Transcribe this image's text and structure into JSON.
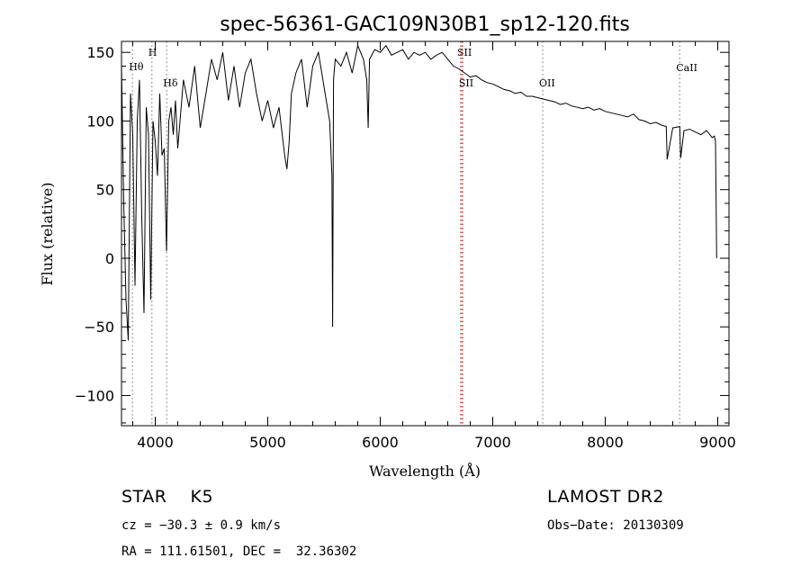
{
  "chart_data": {
    "type": "line",
    "title": "spec-56361-GAC109N30B1_sp12-120.fits",
    "xlabel": "Wavelength (Å)",
    "ylabel": "Flux (relative)",
    "xlim": [
      3700,
      9100
    ],
    "ylim": [
      -122,
      158
    ],
    "x_ticks": [
      4000,
      5000,
      6000,
      7000,
      8000,
      9000
    ],
    "y_ticks": [
      -100,
      -50,
      0,
      50,
      100,
      150
    ],
    "x_tick_labels": [
      "4000",
      "5000",
      "6000",
      "7000",
      "8000",
      "9000"
    ],
    "y_tick_labels": [
      "−100",
      "−50",
      "0",
      "50",
      "100",
      "150"
    ],
    "line_color": "#000000",
    "marker_color": "#cc0000",
    "series": [
      {
        "x": [
          3700,
          3720,
          3740,
          3760,
          3780,
          3800,
          3820,
          3840,
          3860,
          3880,
          3900,
          3920,
          3940,
          3960,
          3980,
          4000,
          4020,
          4040,
          4060,
          4080,
          4100,
          4120,
          4140,
          4160,
          4180,
          4200,
          4250,
          4300,
          4350,
          4400,
          4450,
          4500,
          4550,
          4600,
          4650,
          4700,
          4750,
          4800,
          4850,
          4900,
          4950,
          5000,
          5050,
          5100,
          5150,
          5170,
          5190,
          5210,
          5250,
          5300,
          5350,
          5400,
          5450,
          5500,
          5550,
          5570,
          5577,
          5585,
          5600,
          5650,
          5700,
          5750,
          5800,
          5850,
          5880,
          5893,
          5905,
          5950,
          6000,
          6050,
          6100,
          6150,
          6200,
          6250,
          6300,
          6350,
          6400,
          6450,
          6500,
          6550,
          6600,
          6650,
          6700,
          6750,
          6800,
          6850,
          6900,
          6950,
          7000,
          7050,
          7100,
          7150,
          7200,
          7250,
          7300,
          7350,
          7400,
          7450,
          7500,
          7550,
          7600,
          7650,
          7700,
          7750,
          7800,
          7850,
          7900,
          7950,
          8000,
          8050,
          8100,
          8150,
          8200,
          8250,
          8300,
          8350,
          8400,
          8450,
          8500,
          8542,
          8550,
          8600,
          8662,
          8670,
          8700,
          8750,
          8800,
          8850,
          8900,
          8950,
          8970,
          8980,
          8990
        ],
        "y": [
          140,
          40,
          -30,
          -60,
          120,
          90,
          -20,
          100,
          130,
          30,
          -40,
          110,
          90,
          -30,
          100,
          85,
          60,
          120,
          75,
          80,
          5,
          100,
          110,
          90,
          115,
          80,
          130,
          110,
          140,
          95,
          120,
          145,
          130,
          150,
          115,
          140,
          110,
          135,
          145,
          120,
          100,
          115,
          95,
          110,
          75,
          65,
          85,
          120,
          135,
          145,
          110,
          140,
          150,
          125,
          100,
          60,
          -50,
          130,
          145,
          140,
          150,
          135,
          155,
          145,
          130,
          95,
          145,
          152,
          150,
          155,
          148,
          150,
          152,
          145,
          150,
          148,
          150,
          145,
          148,
          150,
          145,
          140,
          138,
          135,
          132,
          133,
          130,
          128,
          127,
          125,
          123,
          122,
          120,
          121,
          118,
          118,
          117,
          116,
          115,
          114,
          112,
          113,
          111,
          110,
          109,
          110,
          108,
          109,
          107,
          106,
          105,
          104,
          103,
          105,
          101,
          100,
          98,
          99,
          97,
          96,
          72,
          95,
          96,
          73,
          93,
          94,
          92,
          90,
          93,
          88,
          89,
          85,
          0
        ]
      }
    ],
    "line_markers": [
      {
        "label": "Hθ",
        "x": 3798,
        "color": "#888888"
      },
      {
        "label": "H",
        "x": 3970,
        "color": "#888888"
      },
      {
        "label": "Hδ",
        "x": 4102,
        "color": "#888888"
      },
      {
        "label": "SII",
        "x": 6716,
        "color": "#cc0000"
      },
      {
        "label": "SII",
        "x": 6731,
        "color": "#cc0000"
      },
      {
        "label": "OII",
        "x": 7444,
        "color": "#888888"
      },
      {
        "label": "CaII",
        "x": 8662,
        "color": "#888888"
      }
    ]
  },
  "info": {
    "object_class": "STAR    K5",
    "survey": "LAMOST DR2",
    "redshift": "cz = −30.3 ± 0.9 km/s",
    "obs_date": "Obs−Date: 20130309",
    "coords": "RA = 111.61501, DEC =  32.36302"
  }
}
